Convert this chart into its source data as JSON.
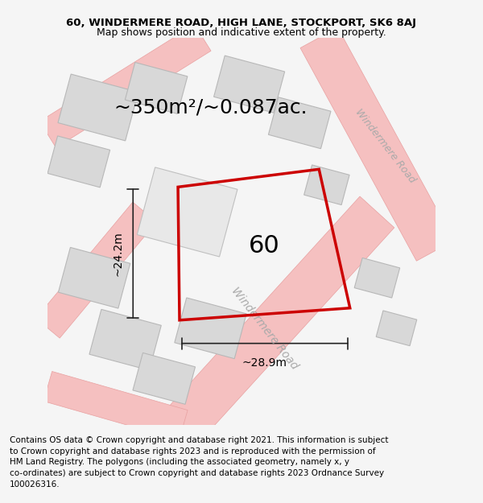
{
  "title_line1": "60, WINDERMERE ROAD, HIGH LANE, STOCKPORT, SK6 8AJ",
  "title_line2": "Map shows position and indicative extent of the property.",
  "footer_text": "Contains OS data © Crown copyright and database right 2021. This information is subject to Crown copyright and database rights 2023 and is reproduced with the permission of HM Land Registry. The polygons (including the associated geometry, namely x, y co-ordinates) are subject to Crown copyright and database rights 2023 Ordnance Survey 100026316.",
  "area_text": "~350m²/~0.087ac.",
  "label_number": "60",
  "dim_width": "~28.9m",
  "dim_height": "~24.2m",
  "road_label1": "Windermere Road",
  "road_label2": "Windermere Road",
  "bg_color": "#f5f5f5",
  "map_bg": "#ffffff",
  "plot_color": "#e8e8e8",
  "road_color": "#f0c8c8",
  "road_outline": "#e8a0a0",
  "red_outline": "#cc0000",
  "dim_line_color": "#222222",
  "title_fontsize": 9.5,
  "footer_fontsize": 7.5,
  "area_fontsize": 18,
  "label_fontsize": 22,
  "road_fontsize": 10,
  "dim_fontsize": 10
}
